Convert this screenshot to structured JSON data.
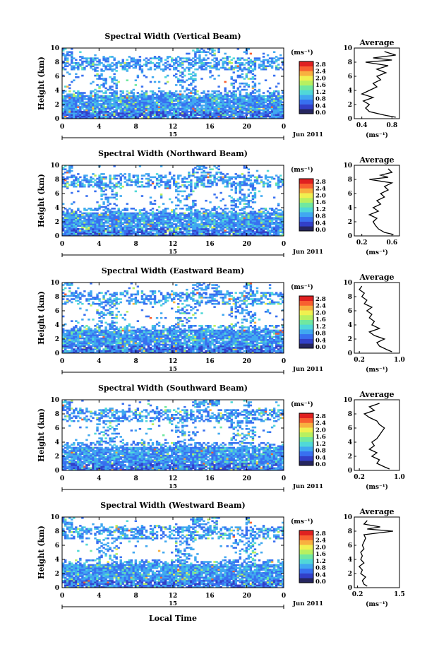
{
  "page": {
    "xlabel": "Local Time",
    "date_label": "Jun 2011",
    "day_label": "15",
    "colorbar_units": "(ms⁻¹)",
    "colorbar_ticks": [
      "2.8",
      "2.4",
      "2.0",
      "1.6",
      "1.2",
      "0.8",
      "0.4",
      "0.0"
    ],
    "colors": [
      "#26265f",
      "#3240c8",
      "#3870f0",
      "#40a8f0",
      "#50d8d8",
      "#70e8a0",
      "#b8f060",
      "#f0f050",
      "#f8b040",
      "#f86030",
      "#e02020"
    ]
  },
  "chart_data": [
    {
      "type": "heatmap",
      "title": "Spectral Width (Vertical Beam)",
      "ylabel": "Height (km)",
      "xlabel": "Local Time",
      "x_ticks": [
        "0",
        "4",
        "8",
        "12",
        "16",
        "20",
        "0"
      ],
      "y_ticks": [
        "0",
        "2",
        "4",
        "6",
        "8",
        "10"
      ],
      "xlim": [
        0,
        24
      ],
      "ylim": [
        0,
        10
      ],
      "value_range": [
        0,
        3.0
      ],
      "profile": {
        "title": "Average",
        "xlabel": "(ms⁻¹)",
        "x_ticks": [
          "0.4",
          "0.8"
        ],
        "xlim": [
          0.3,
          0.9
        ],
        "heights": [
          0.2,
          0.5,
          1,
          1.5,
          2,
          2.5,
          3,
          3.5,
          4,
          4.5,
          5,
          5.5,
          6,
          6.5,
          7,
          7.5,
          8,
          8.3,
          8.6,
          9,
          9.5
        ],
        "values": [
          0.85,
          0.7,
          0.5,
          0.45,
          0.5,
          0.42,
          0.55,
          0.4,
          0.5,
          0.6,
          0.55,
          0.65,
          0.6,
          0.72,
          0.6,
          0.75,
          0.45,
          0.8,
          0.55,
          0.85,
          0.7
        ]
      }
    },
    {
      "type": "heatmap",
      "title": "Spectral Width (Northward Beam)",
      "ylabel": "Height (km)",
      "xlabel": "Local Time",
      "x_ticks": [
        "0",
        "4",
        "8",
        "12",
        "16",
        "20",
        "0"
      ],
      "y_ticks": [
        "0",
        "2",
        "4",
        "6",
        "8",
        "10"
      ],
      "xlim": [
        0,
        24
      ],
      "ylim": [
        0,
        10
      ],
      "value_range": [
        0,
        3.0
      ],
      "profile": {
        "title": "Average",
        "xlabel": "(ms⁻¹)",
        "x_ticks": [
          "0.2",
          "0.6"
        ],
        "xlim": [
          0.1,
          0.7
        ],
        "heights": [
          0.2,
          0.5,
          1,
          1.5,
          2,
          2.5,
          3,
          3.5,
          4,
          4.5,
          5,
          5.5,
          6,
          6.5,
          7,
          7.5,
          8,
          8.3,
          8.6,
          9,
          9.5
        ],
        "values": [
          0.62,
          0.5,
          0.42,
          0.38,
          0.35,
          0.4,
          0.3,
          0.42,
          0.35,
          0.45,
          0.4,
          0.5,
          0.45,
          0.55,
          0.5,
          0.6,
          0.3,
          0.55,
          0.45,
          0.6,
          0.55
        ]
      }
    },
    {
      "type": "heatmap",
      "title": "Spectral Width (Eastward Beam)",
      "ylabel": "Height (km)",
      "xlabel": "Local Time",
      "x_ticks": [
        "0",
        "4",
        "8",
        "12",
        "16",
        "20",
        "0"
      ],
      "y_ticks": [
        "0",
        "2",
        "4",
        "6",
        "8",
        "10"
      ],
      "xlim": [
        0,
        24
      ],
      "ylim": [
        0,
        10
      ],
      "value_range": [
        0,
        3.0
      ],
      "profile": {
        "title": "Average",
        "xlabel": "(ms⁻¹)",
        "x_ticks": [
          "0.2",
          "1.0"
        ],
        "xlim": [
          0.1,
          1.0
        ],
        "heights": [
          0.2,
          0.5,
          1,
          1.5,
          2,
          2.5,
          3,
          3.5,
          4,
          4.5,
          5,
          5.5,
          6,
          6.5,
          7,
          7.5,
          8,
          8.5,
          9,
          9.5
        ],
        "values": [
          0.85,
          0.75,
          0.6,
          0.55,
          0.7,
          0.5,
          0.4,
          0.6,
          0.45,
          0.5,
          0.4,
          0.45,
          0.35,
          0.45,
          0.3,
          0.35,
          0.25,
          0.3,
          0.2,
          0.25
        ]
      }
    },
    {
      "type": "heatmap",
      "title": "Spectral Width (Southward Beam)",
      "ylabel": "Height (km)",
      "xlabel": "Local Time",
      "x_ticks": [
        "0",
        "4",
        "8",
        "12",
        "16",
        "20",
        "0"
      ],
      "y_ticks": [
        "0",
        "2",
        "4",
        "6",
        "8",
        "10"
      ],
      "xlim": [
        0,
        24
      ],
      "ylim": [
        0,
        10
      ],
      "value_range": [
        0,
        3.0
      ],
      "profile": {
        "title": "Average",
        "xlabel": "(ms⁻¹)",
        "x_ticks": [
          "0.2",
          "1.0"
        ],
        "xlim": [
          0.1,
          1.0
        ],
        "heights": [
          0.2,
          0.5,
          1,
          1.5,
          2,
          2.5,
          3,
          3.5,
          4,
          4.5,
          5,
          5.5,
          6,
          6.5,
          7,
          7.5,
          8,
          8.5,
          9,
          9.5
        ],
        "values": [
          0.8,
          0.7,
          0.55,
          0.6,
          0.45,
          0.55,
          0.4,
          0.5,
          0.45,
          0.55,
          0.6,
          0.65,
          0.7,
          0.6,
          0.55,
          0.4,
          0.3,
          0.5,
          0.4,
          0.6
        ]
      }
    },
    {
      "type": "heatmap",
      "title": "Spectral Width (Westward Beam)",
      "ylabel": "Height (km)",
      "xlabel": "Local Time",
      "x_ticks": [
        "0",
        "4",
        "8",
        "12",
        "16",
        "20",
        "0"
      ],
      "y_ticks": [
        "0",
        "2",
        "4",
        "6",
        "8",
        "10"
      ],
      "xlim": [
        0,
        24
      ],
      "ylim": [
        0,
        10
      ],
      "value_range": [
        0,
        3.0
      ],
      "profile": {
        "title": "Average",
        "xlabel": "(ms⁻¹)",
        "x_ticks": [
          "0.2",
          "1.5"
        ],
        "xlim": [
          0.1,
          1.5
        ],
        "heights": [
          0.2,
          0.5,
          1,
          1.5,
          2,
          2.5,
          3,
          3.5,
          4,
          4.5,
          5,
          5.5,
          6,
          6.5,
          7,
          7.5,
          8,
          8.3,
          8.6,
          9,
          9.5
        ],
        "values": [
          0.5,
          0.4,
          0.35,
          0.45,
          0.3,
          0.35,
          0.25,
          0.4,
          0.3,
          0.35,
          0.3,
          0.4,
          0.35,
          0.4,
          0.45,
          0.4,
          1.3,
          0.5,
          0.9,
          0.4,
          0.5
        ]
      }
    }
  ]
}
